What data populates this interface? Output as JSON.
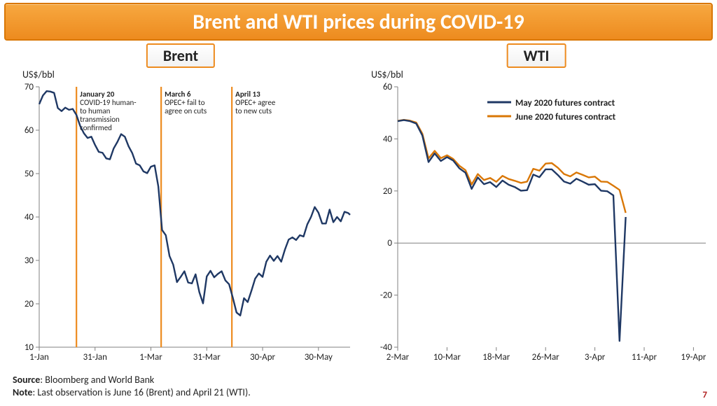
{
  "title": "Brent and WTI prices during COVID-19",
  "page_number": "7",
  "footer": {
    "source_label": "Source",
    "source_text": ": Bloomberg and World Bank",
    "note_label": "Note",
    "note_text": ": Last observation is June 16 (Brent) and April 21 (WTI)."
  },
  "colors": {
    "title_bg_top": "#f7a840",
    "title_bg_bot": "#ed8b1f",
    "accent": "#ed8b1f",
    "series_navy": "#1f3864",
    "series_orange": "#d97706",
    "axis": "#808080",
    "vline": "#ed8b1f"
  },
  "brent": {
    "subtitle": "Brent",
    "y_unit": "US$/bbl",
    "type": "line",
    "ylim": [
      10,
      70
    ],
    "ytick_step": 10,
    "x_labels": [
      "1-Jan",
      "31-Jan",
      "1-Mar",
      "31-Mar",
      "30-Apr",
      "30-May"
    ],
    "x_tick_indices": [
      0,
      30,
      60,
      90,
      120,
      150
    ],
    "x_domain": [
      0,
      167
    ],
    "line_color": "#1f3864",
    "line_width": 2.4,
    "data": [
      [
        0,
        66.0
      ],
      [
        2,
        68.0
      ],
      [
        4,
        69.0
      ],
      [
        6,
        68.9
      ],
      [
        8,
        68.6
      ],
      [
        10,
        65.1
      ],
      [
        12,
        64.4
      ],
      [
        14,
        65.2
      ],
      [
        16,
        64.7
      ],
      [
        18,
        64.9
      ],
      [
        20,
        63.5
      ],
      [
        22,
        61.0
      ],
      [
        24,
        59.3
      ],
      [
        26,
        58.2
      ],
      [
        28,
        58.5
      ],
      [
        30,
        56.6
      ],
      [
        32,
        55.0
      ],
      [
        34,
        54.8
      ],
      [
        36,
        53.5
      ],
      [
        38,
        53.3
      ],
      [
        40,
        55.8
      ],
      [
        42,
        57.3
      ],
      [
        44,
        59.1
      ],
      [
        46,
        58.5
      ],
      [
        48,
        56.3
      ],
      [
        50,
        54.7
      ],
      [
        52,
        52.3
      ],
      [
        54,
        51.9
      ],
      [
        56,
        50.5
      ],
      [
        58,
        50.1
      ],
      [
        60,
        51.6
      ],
      [
        62,
        51.9
      ],
      [
        64,
        47.0
      ],
      [
        66,
        37.0
      ],
      [
        68,
        35.8
      ],
      [
        70,
        31.0
      ],
      [
        72,
        29.0
      ],
      [
        74,
        25.0
      ],
      [
        76,
        26.2
      ],
      [
        78,
        27.5
      ],
      [
        80,
        24.9
      ],
      [
        82,
        24.7
      ],
      [
        84,
        26.8
      ],
      [
        86,
        22.7
      ],
      [
        88,
        20.1
      ],
      [
        90,
        26.3
      ],
      [
        92,
        27.6
      ],
      [
        94,
        26.1
      ],
      [
        96,
        26.9
      ],
      [
        98,
        27.5
      ],
      [
        100,
        25.4
      ],
      [
        102,
        24.5
      ],
      [
        104,
        21.4
      ],
      [
        106,
        18.0
      ],
      [
        108,
        17.3
      ],
      [
        110,
        21.3
      ],
      [
        112,
        20.4
      ],
      [
        114,
        23.0
      ],
      [
        116,
        25.8
      ],
      [
        118,
        27.0
      ],
      [
        120,
        26.2
      ],
      [
        122,
        29.7
      ],
      [
        124,
        31.1
      ],
      [
        126,
        29.9
      ],
      [
        128,
        31.0
      ],
      [
        130,
        29.7
      ],
      [
        132,
        32.5
      ],
      [
        134,
        34.8
      ],
      [
        136,
        35.3
      ],
      [
        138,
        34.7
      ],
      [
        140,
        35.8
      ],
      [
        142,
        35.5
      ],
      [
        144,
        38.3
      ],
      [
        146,
        40.0
      ],
      [
        148,
        42.3
      ],
      [
        150,
        41.0
      ],
      [
        152,
        38.5
      ],
      [
        154,
        38.5
      ],
      [
        156,
        41.7
      ],
      [
        158,
        38.8
      ],
      [
        160,
        40.0
      ],
      [
        162,
        39.0
      ],
      [
        164,
        41.2
      ],
      [
        166,
        40.9
      ],
      [
        167,
        40.5
      ]
    ],
    "vlines": [
      20,
      65.5,
      103.5
    ],
    "annotations": [
      {
        "x": 20,
        "date": "January 20",
        "lines": [
          "COVID-19 human-",
          "to human",
          "transmission",
          "confirmed"
        ]
      },
      {
        "x": 65.5,
        "date": "March 6",
        "lines": [
          "OPEC+ fail to",
          "agree on cuts"
        ]
      },
      {
        "x": 103.5,
        "date": "April 13",
        "lines": [
          "OPEC+ agree",
          "to new cuts"
        ]
      }
    ]
  },
  "wti": {
    "subtitle": "WTI",
    "y_unit": "US$/bbl",
    "type": "line",
    "ylim": [
      -40,
      60
    ],
    "ytick_step": 20,
    "x_labels": [
      "2-Mar",
      "10-Mar",
      "18-Mar",
      "26-Mar",
      "3-Apr",
      "11-Apr",
      "19-Apr"
    ],
    "x_tick_indices": [
      0,
      8,
      16,
      24,
      32,
      40,
      48
    ],
    "x_domain": [
      0,
      50
    ],
    "line_width": 2.4,
    "legend": {
      "may": "May 2020 futures contract",
      "june": "June 2020 futures contract"
    },
    "may_color": "#1f3864",
    "june_color": "#d97706",
    "may": [
      [
        0,
        46.8
      ],
      [
        1,
        47.2
      ],
      [
        2,
        46.8
      ],
      [
        3,
        45.9
      ],
      [
        4,
        41.3
      ],
      [
        5,
        31.1
      ],
      [
        6,
        34.4
      ],
      [
        7,
        31.5
      ],
      [
        8,
        33.0
      ],
      [
        9,
        31.7
      ],
      [
        10,
        28.7
      ],
      [
        11,
        27.0
      ],
      [
        12,
        20.8
      ],
      [
        13,
        25.2
      ],
      [
        14,
        22.6
      ],
      [
        15,
        23.4
      ],
      [
        16,
        21.5
      ],
      [
        17,
        24.0
      ],
      [
        18,
        22.4
      ],
      [
        19,
        21.5
      ],
      [
        20,
        20.1
      ],
      [
        21,
        20.3
      ],
      [
        22,
        26.3
      ],
      [
        23,
        25.3
      ],
      [
        24,
        28.3
      ],
      [
        25,
        28.3
      ],
      [
        26,
        26.1
      ],
      [
        27,
        23.6
      ],
      [
        28,
        22.8
      ],
      [
        29,
        24.7
      ],
      [
        30,
        23.6
      ],
      [
        31,
        22.4
      ],
      [
        32,
        22.6
      ],
      [
        33,
        20.1
      ],
      [
        34,
        19.9
      ],
      [
        35,
        18.3
      ],
      [
        36,
        -37.6
      ],
      [
        37,
        10.0
      ]
    ],
    "june": [
      [
        0,
        46.9
      ],
      [
        1,
        47.3
      ],
      [
        2,
        47.0
      ],
      [
        3,
        46.3
      ],
      [
        4,
        42.0
      ],
      [
        5,
        32.5
      ],
      [
        6,
        35.4
      ],
      [
        7,
        32.6
      ],
      [
        8,
        33.7
      ],
      [
        9,
        32.3
      ],
      [
        10,
        29.7
      ],
      [
        11,
        28.0
      ],
      [
        12,
        22.5
      ],
      [
        13,
        26.5
      ],
      [
        14,
        24.2
      ],
      [
        15,
        25.0
      ],
      [
        16,
        23.5
      ],
      [
        17,
        25.8
      ],
      [
        18,
        24.6
      ],
      [
        19,
        23.9
      ],
      [
        20,
        23.1
      ],
      [
        21,
        23.6
      ],
      [
        22,
        28.5
      ],
      [
        23,
        27.8
      ],
      [
        24,
        30.5
      ],
      [
        25,
        30.7
      ],
      [
        26,
        28.9
      ],
      [
        27,
        26.5
      ],
      [
        28,
        25.6
      ],
      [
        29,
        27.1
      ],
      [
        30,
        26.2
      ],
      [
        31,
        25.2
      ],
      [
        32,
        25.5
      ],
      [
        33,
        23.6
      ],
      [
        34,
        23.5
      ],
      [
        35,
        22.0
      ],
      [
        36,
        20.4
      ],
      [
        37,
        11.6
      ]
    ]
  }
}
